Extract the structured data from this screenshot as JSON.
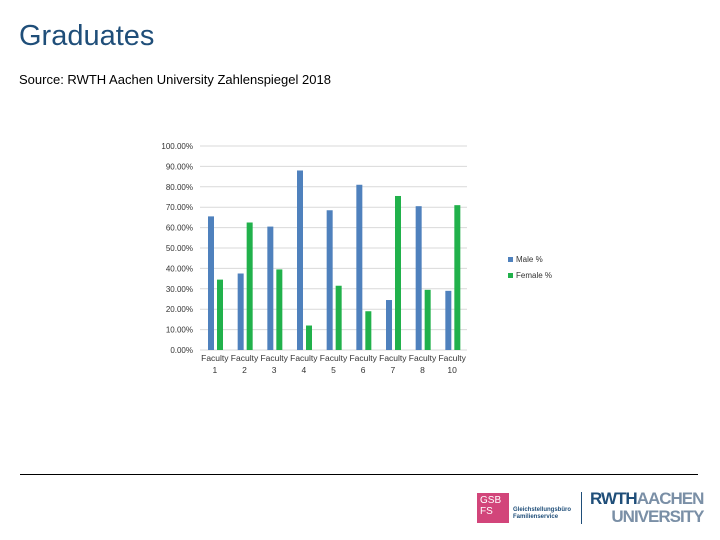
{
  "title": "Graduates",
  "source": "Source: RWTH Aachen University Zahlenspiegel 2018",
  "chart_data": {
    "type": "bar",
    "categories": [
      "Faculty 1",
      "Faculty 2",
      "Faculty 3",
      "Faculty 4",
      "Faculty 5",
      "Faculty 6",
      "Faculty 7",
      "Faculty 8",
      "Faculty 10"
    ],
    "category_lines": [
      [
        "Faculty",
        "1"
      ],
      [
        "Faculty",
        "2"
      ],
      [
        "Faculty",
        "3"
      ],
      [
        "Faculty",
        "4"
      ],
      [
        "Faculty",
        "5"
      ],
      [
        "Faculty",
        "6"
      ],
      [
        "Faculty",
        "7"
      ],
      [
        "Faculty",
        "8"
      ],
      [
        "Faculty",
        "10"
      ]
    ],
    "series": [
      {
        "name": "Male %",
        "color": "#4f81bd",
        "values": [
          65.5,
          37.5,
          60.5,
          88,
          68.5,
          81,
          24.5,
          70.5,
          29
        ]
      },
      {
        "name": "Female %",
        "color": "#21b14b",
        "values": [
          34.5,
          62.5,
          39.5,
          12,
          31.5,
          19,
          75.5,
          29.5,
          71
        ]
      }
    ],
    "ylim": [
      0,
      100
    ],
    "yticks": [
      "0.00%",
      "10.00%",
      "20.00%",
      "30.00%",
      "40.00%",
      "50.00%",
      "60.00%",
      "70.00%",
      "80.00%",
      "90.00%",
      "100.00%"
    ],
    "grid": true,
    "legend": "right"
  },
  "logo": {
    "gsb_lines": [
      "GSB",
      "FS"
    ],
    "gsb_text": [
      "Gleichstellungsbüro",
      "Familienservice"
    ],
    "rwth_part1": "RWTH",
    "rwth_part2": "AACHEN",
    "rwth_part3": "UNIVERSITY"
  }
}
